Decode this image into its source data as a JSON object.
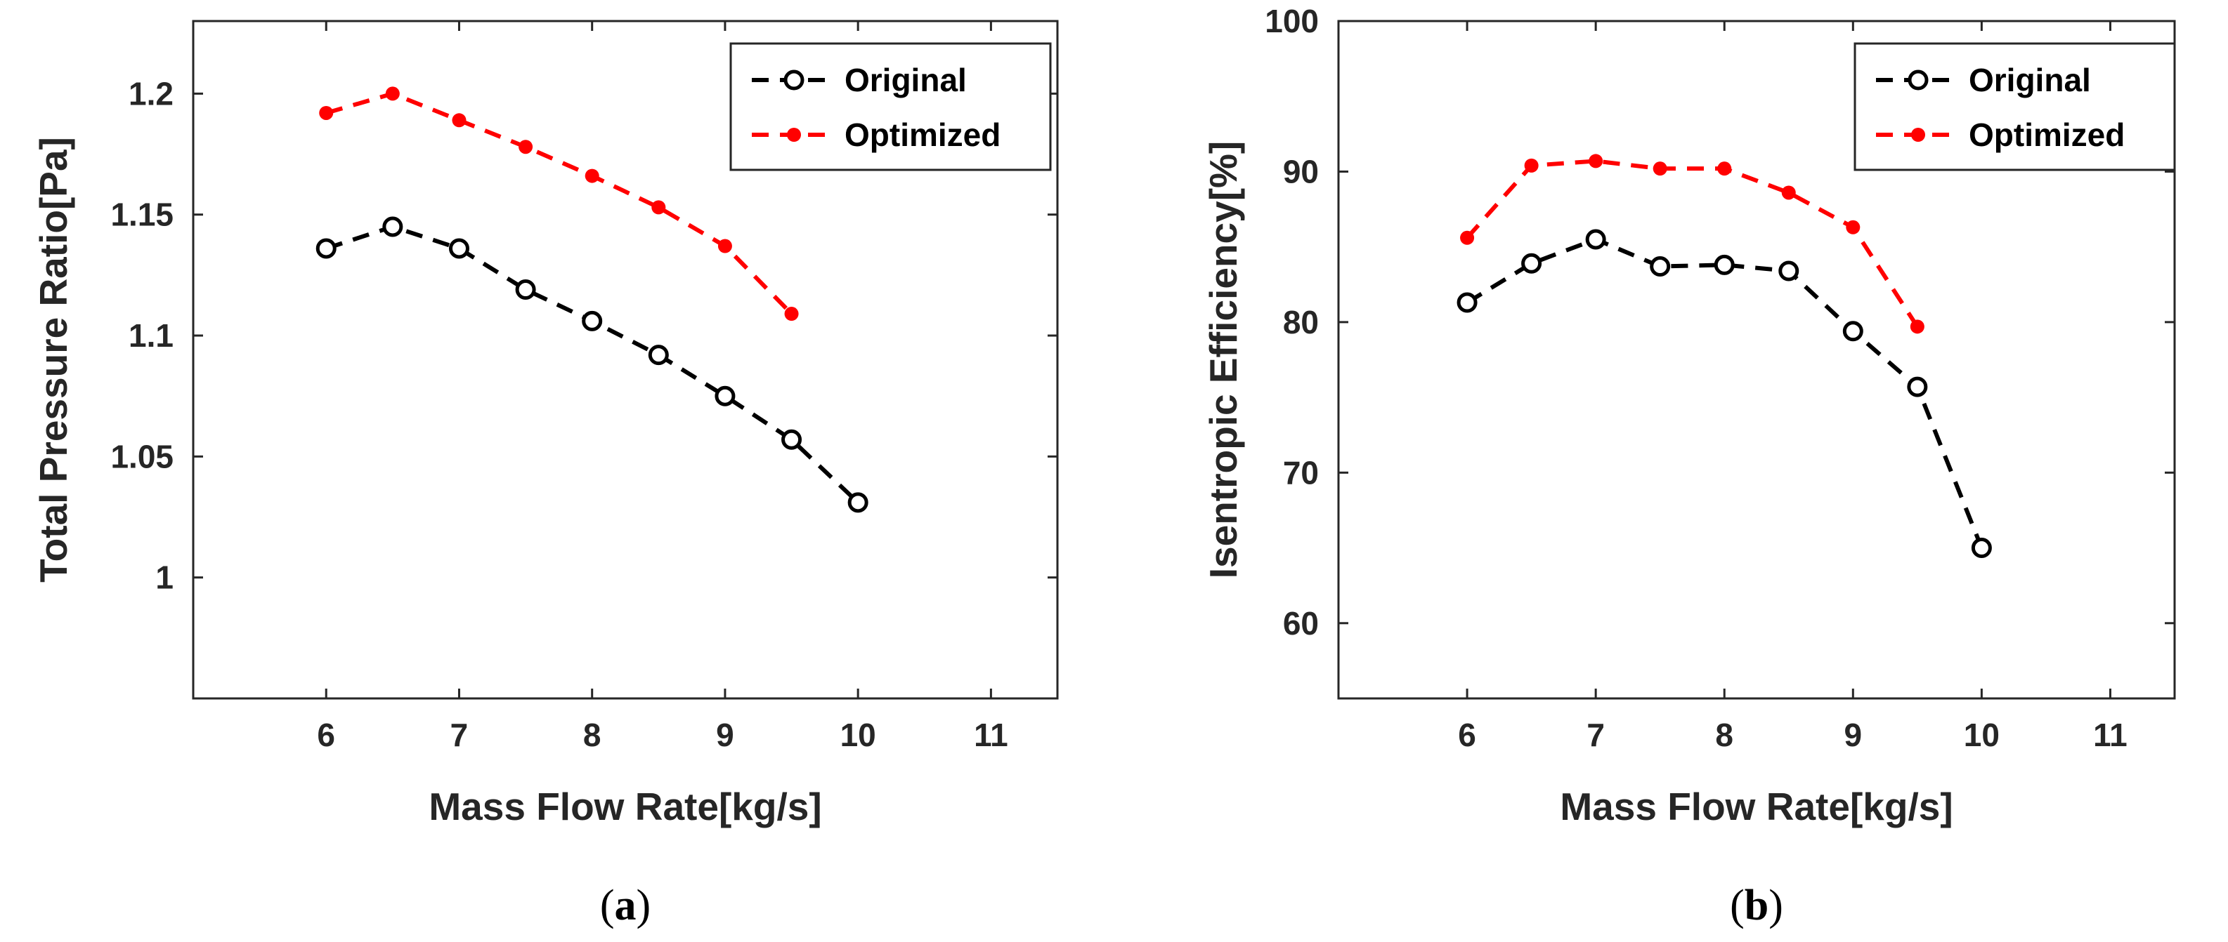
{
  "chart_data": [
    {
      "type": "line",
      "caption": {
        "open": "(",
        "letter": "a",
        "close": ")"
      },
      "title": "",
      "xlabel": "Mass Flow Rate[kg/s]",
      "ylabel": "Total Pressure Ratio[Pa]",
      "xlim": [
        5,
        11.5
      ],
      "ylim": [
        0.95,
        1.23
      ],
      "xticks": [
        6,
        7,
        8,
        9,
        10,
        11
      ],
      "yticks": [
        1,
        1.05,
        1.1,
        1.15,
        1.2
      ],
      "ytick_labels": [
        "1",
        "1.05",
        "1.1",
        "1.15",
        "1.2"
      ],
      "grid": false,
      "legend_position": "top-right",
      "series": [
        {
          "name": "Original",
          "color": "#000000",
          "marker": "open-circle",
          "line_style": "dashed",
          "x": [
            6,
            6.5,
            7,
            7.5,
            8,
            8.5,
            9,
            9.5,
            10
          ],
          "values": [
            1.136,
            1.145,
            1.136,
            1.119,
            1.106,
            1.092,
            1.075,
            1.057,
            1.031
          ]
        },
        {
          "name": "Optimized",
          "color": "#ff0000",
          "marker": "filled-dot",
          "line_style": "dashed",
          "x": [
            6,
            6.5,
            7,
            7.5,
            8,
            8.5,
            9,
            9.5
          ],
          "values": [
            1.192,
            1.2,
            1.189,
            1.178,
            1.166,
            1.153,
            1.137,
            1.109
          ]
        }
      ]
    },
    {
      "type": "line",
      "caption": {
        "open": "(",
        "letter": "b",
        "close": ")"
      },
      "title": "",
      "xlabel": "Mass Flow Rate[kg/s]",
      "ylabel": "Isentropic Efficiency[%]",
      "xlim": [
        5,
        11.5
      ],
      "ylim": [
        55,
        100
      ],
      "xticks": [
        6,
        7,
        8,
        9,
        10,
        11
      ],
      "yticks": [
        60,
        70,
        80,
        90,
        100
      ],
      "ytick_labels": [
        "60",
        "70",
        "80",
        "90",
        "100"
      ],
      "grid": false,
      "legend_position": "top-right",
      "series": [
        {
          "name": "Original",
          "color": "#000000",
          "marker": "open-circle",
          "line_style": "dashed",
          "x": [
            6,
            6.5,
            7,
            7.5,
            8,
            8.5,
            9,
            9.5,
            10
          ],
          "values": [
            81.3,
            83.9,
            85.5,
            83.7,
            83.8,
            83.4,
            79.4,
            75.7,
            65.0
          ]
        },
        {
          "name": "Optimized",
          "color": "#ff0000",
          "marker": "filled-dot",
          "line_style": "dashed",
          "x": [
            6,
            6.5,
            7,
            7.5,
            8,
            8.5,
            9,
            9.5
          ],
          "values": [
            85.6,
            90.4,
            90.7,
            90.2,
            90.2,
            88.6,
            86.3,
            79.7
          ]
        }
      ]
    }
  ]
}
